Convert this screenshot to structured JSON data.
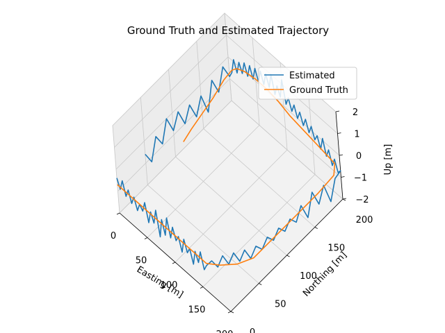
{
  "chart_data": {
    "type": "line",
    "title": "Ground Truth and Estimated Trajectory",
    "xlabel": "Easting [m]",
    "ylabel": "Northing [m]",
    "zlabel": "Up [m]",
    "xlim": [
      0,
      200
    ],
    "ylim": [
      0,
      200
    ],
    "zlim": [
      -2,
      2
    ],
    "xticks": [
      "0",
      "50",
      "100",
      "150",
      "200"
    ],
    "yticks": [
      "0",
      "50",
      "100",
      "150",
      "200"
    ],
    "zticks": [
      "−2",
      "−1",
      "0",
      "1",
      "2"
    ],
    "grid": true,
    "legend_position": "upper-right",
    "series": [
      {
        "name": "Estimated",
        "color": "#1f77b4",
        "points": [
          [
            0,
            0,
            -0.4
          ],
          [
            5,
            0,
            -0.8
          ],
          [
            10,
            0,
            -0.3
          ],
          [
            15,
            0,
            -0.9
          ],
          [
            20,
            0,
            -0.5
          ],
          [
            25,
            0,
            -1.0
          ],
          [
            30,
            0,
            -0.6
          ],
          [
            35,
            0,
            -1.1
          ],
          [
            40,
            0,
            -0.7
          ],
          [
            45,
            0,
            -0.9
          ],
          [
            50,
            0,
            -0.4
          ],
          [
            55,
            0,
            -1.2
          ],
          [
            60,
            0,
            -0.6
          ],
          [
            65,
            0,
            -1.0
          ],
          [
            70,
            0,
            -0.3
          ],
          [
            75,
            0,
            -1.4
          ],
          [
            80,
            0,
            -0.5
          ],
          [
            85,
            0,
            -1.1
          ],
          [
            90,
            0,
            -0.2
          ],
          [
            95,
            0,
            -1.0
          ],
          [
            100,
            0,
            -0.4
          ],
          [
            105,
            0,
            -0.9
          ],
          [
            110,
            0,
            -0.6
          ],
          [
            115,
            0,
            -1.2
          ],
          [
            120,
            0,
            -0.5
          ],
          [
            125,
            0,
            -1.0
          ],
          [
            130,
            0,
            -0.7
          ],
          [
            135,
            0,
            -1.3
          ],
          [
            140,
            0,
            -0.6
          ],
          [
            145,
            0,
            -1.0
          ],
          [
            150,
            0,
            -0.4
          ],
          [
            155,
            0,
            -1.1
          ],
          [
            160,
            0,
            -0.8
          ],
          [
            165,
            5,
            -0.6
          ],
          [
            170,
            10,
            -0.9
          ],
          [
            175,
            15,
            -0.4
          ],
          [
            180,
            20,
            -0.8
          ],
          [
            185,
            25,
            -0.3
          ],
          [
            190,
            30,
            -0.7
          ],
          [
            195,
            35,
            -0.2
          ],
          [
            200,
            40,
            -0.6
          ],
          [
            200,
            50,
            -0.3
          ],
          [
            200,
            60,
            -0.7
          ],
          [
            200,
            70,
            -0.4
          ],
          [
            200,
            80,
            -0.8
          ],
          [
            200,
            90,
            -0.5
          ],
          [
            200,
            100,
            -0.9
          ],
          [
            200,
            110,
            -0.6
          ],
          [
            200,
            120,
            -1.0
          ],
          [
            200,
            130,
            -0.5
          ],
          [
            200,
            140,
            -1.3
          ],
          [
            200,
            150,
            -0.4
          ],
          [
            200,
            160,
            -1.2
          ],
          [
            200,
            170,
            -0.6
          ],
          [
            200,
            180,
            -1.6
          ],
          [
            200,
            190,
            -0.8
          ],
          [
            200,
            200,
            -0.7
          ],
          [
            195,
            200,
            -0.9
          ],
          [
            190,
            200,
            -0.4
          ],
          [
            185,
            200,
            -0.8
          ],
          [
            180,
            200,
            -0.2
          ],
          [
            175,
            200,
            -0.6
          ],
          [
            170,
            200,
            0.1
          ],
          [
            165,
            200,
            -0.5
          ],
          [
            160,
            200,
            0.0
          ],
          [
            155,
            200,
            -0.3
          ],
          [
            150,
            200,
            0.2
          ],
          [
            145,
            200,
            -0.2
          ],
          [
            140,
            200,
            0.3
          ],
          [
            135,
            200,
            -0.1
          ],
          [
            130,
            200,
            0.4
          ],
          [
            125,
            200,
            0.0
          ],
          [
            120,
            200,
            0.5
          ],
          [
            115,
            200,
            0.1
          ],
          [
            110,
            200,
            0.6
          ],
          [
            105,
            200,
            0.2
          ],
          [
            100,
            200,
            1.2
          ],
          [
            95,
            200,
            0.3
          ],
          [
            90,
            200,
            0.7
          ],
          [
            85,
            200,
            0.2
          ],
          [
            80,
            200,
            1.0
          ],
          [
            75,
            200,
            0.3
          ],
          [
            70,
            200,
            0.8
          ],
          [
            65,
            200,
            0.2
          ],
          [
            60,
            200,
            0.7
          ],
          [
            55,
            200,
            0.1
          ],
          [
            50,
            200,
            0.6
          ],
          [
            45,
            200,
            0.0
          ],
          [
            40,
            200,
            0.5
          ],
          [
            35,
            200,
            -0.1
          ],
          [
            30,
            200,
            0.4
          ],
          [
            25,
            200,
            -0.2
          ],
          [
            20,
            200,
            0.2
          ],
          [
            15,
            200,
            -0.4
          ],
          [
            10,
            200,
            0.1
          ],
          [
            5,
            200,
            -0.6
          ],
          [
            0,
            200,
            -0.9
          ],
          [
            0,
            190,
            -0.2
          ],
          [
            0,
            180,
            -1.1
          ],
          [
            0,
            170,
            -0.3
          ],
          [
            0,
            160,
            -1.5
          ],
          [
            0,
            150,
            -0.5
          ],
          [
            0,
            140,
            -1.2
          ],
          [
            0,
            130,
            -0.4
          ],
          [
            0,
            120,
            -1.0
          ],
          [
            0,
            110,
            -0.2
          ],
          [
            0,
            100,
            -0.8
          ],
          [
            0,
            90,
            0.0
          ],
          [
            0,
            80,
            -0.9
          ],
          [
            0,
            70,
            -0.3
          ],
          [
            0,
            60,
            -1.2
          ],
          [
            0,
            50,
            -0.6
          ]
        ]
      },
      {
        "name": "Ground Truth",
        "color": "#ff7f0e",
        "points": [
          [
            0,
            0,
            -0.7
          ],
          [
            20,
            0,
            -0.7
          ],
          [
            40,
            0,
            -0.7
          ],
          [
            60,
            0,
            -0.7
          ],
          [
            80,
            0,
            -0.7
          ],
          [
            100,
            0,
            -0.7
          ],
          [
            120,
            0,
            -0.7
          ],
          [
            140,
            0,
            -0.7
          ],
          [
            160,
            0,
            -0.7
          ],
          [
            175,
            10,
            -0.7
          ],
          [
            190,
            25,
            -0.7
          ],
          [
            200,
            45,
            -0.7
          ],
          [
            200,
            80,
            -0.7
          ],
          [
            200,
            120,
            -0.7
          ],
          [
            200,
            160,
            -0.7
          ],
          [
            198,
            190,
            -0.7
          ],
          [
            190,
            200,
            -0.6
          ],
          [
            170,
            200,
            -0.5
          ],
          [
            150,
            200,
            -0.4
          ],
          [
            130,
            200,
            -0.3
          ],
          [
            110,
            200,
            -0.2
          ],
          [
            90,
            200,
            0.0
          ],
          [
            70,
            200,
            0.1
          ],
          [
            50,
            200,
            0.1
          ],
          [
            30,
            200,
            0.0
          ],
          [
            15,
            200,
            -0.2
          ],
          [
            5,
            200,
            -0.5
          ],
          [
            0,
            190,
            -0.8
          ],
          [
            0,
            170,
            -1.1
          ],
          [
            0,
            150,
            -1.3
          ],
          [
            0,
            130,
            -1.5
          ],
          [
            0,
            115,
            -1.7
          ]
        ]
      }
    ]
  }
}
